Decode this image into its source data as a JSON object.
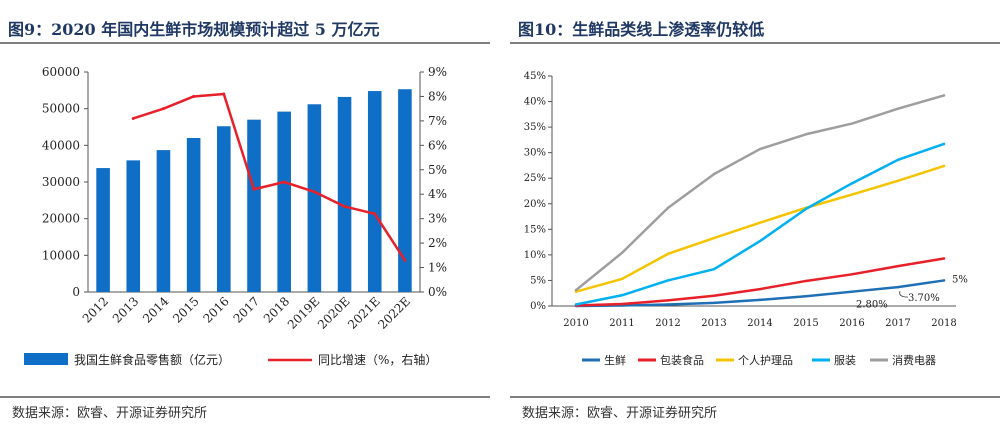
{
  "left": {
    "title": "图9：2020 年国内生鲜市场规模预计超过 5 万亿元",
    "source": "数据来源：欧睿、开源证券研究所"
  },
  "right": {
    "title": "图10：生鲜品类线上渗透率仍较低",
    "source": "数据来源：欧睿、开源证券研究所"
  },
  "chart_data": [
    {
      "type": "bar",
      "categories": [
        "2012",
        "2013",
        "2014",
        "2015",
        "2016",
        "2017",
        "2018",
        "2019E",
        "2020E",
        "2021E",
        "2022E"
      ],
      "series": [
        {
          "name": "我国生鲜食品零售额（亿元）",
          "type": "bar",
          "axis": "left",
          "color": "#0f6fc6",
          "values": [
            33800,
            35900,
            38700,
            42000,
            45200,
            47000,
            49200,
            51200,
            53200,
            54800,
            55300
          ]
        },
        {
          "name": "同比增速（%，右轴）",
          "type": "line",
          "axis": "right",
          "color": "#e8202a",
          "values": [
            null,
            7.1,
            7.5,
            8.0,
            8.1,
            4.2,
            4.5,
            4.1,
            3.5,
            3.2,
            1.3
          ]
        }
      ],
      "y_left": {
        "min": 0,
        "max": 60000,
        "ticks": [
          0,
          10000,
          20000,
          30000,
          40000,
          50000,
          60000
        ]
      },
      "y_right": {
        "min": 0,
        "max": 9,
        "ticks": [
          "0%",
          "1%",
          "2%",
          "3%",
          "4%",
          "5%",
          "6%",
          "7%",
          "8%",
          "9%"
        ]
      },
      "legend_position": "bottom",
      "grid": false
    },
    {
      "type": "line",
      "categories": [
        "2010",
        "2011",
        "2012",
        "2013",
        "2014",
        "2015",
        "2016",
        "2017",
        "2018"
      ],
      "series": [
        {
          "name": "生鲜",
          "color": "#1f6fb5",
          "values": [
            0.0,
            0.1,
            0.3,
            0.6,
            1.2,
            1.9,
            2.8,
            3.7,
            5.0
          ]
        },
        {
          "name": "包装食品",
          "color": "#e8202a",
          "values": [
            0.1,
            0.4,
            1.1,
            2.0,
            3.3,
            4.9,
            6.2,
            7.8,
            9.3
          ]
        },
        {
          "name": "个人护理品",
          "color": "#f5c400",
          "values": [
            2.8,
            5.3,
            10.2,
            13.3,
            16.3,
            19.2,
            21.8,
            24.5,
            27.4
          ]
        },
        {
          "name": "服装",
          "color": "#00b0f0",
          "values": [
            0.3,
            2.1,
            5.0,
            7.2,
            12.7,
            19.0,
            24.0,
            28.6,
            31.7
          ]
        },
        {
          "name": "消费电器",
          "color": "#9e9e9e",
          "values": [
            3.1,
            10.4,
            19.2,
            25.8,
            30.7,
            33.6,
            35.7,
            38.6,
            41.2
          ]
        }
      ],
      "y": {
        "min": 0,
        "max": 45,
        "ticks": [
          "0%",
          "5%",
          "10%",
          "15%",
          "20%",
          "25%",
          "30%",
          "35%",
          "40%",
          "45%"
        ]
      },
      "annotations": [
        "5%",
        "3.70%",
        "2.80%"
      ],
      "legend_position": "bottom",
      "grid": false
    }
  ]
}
